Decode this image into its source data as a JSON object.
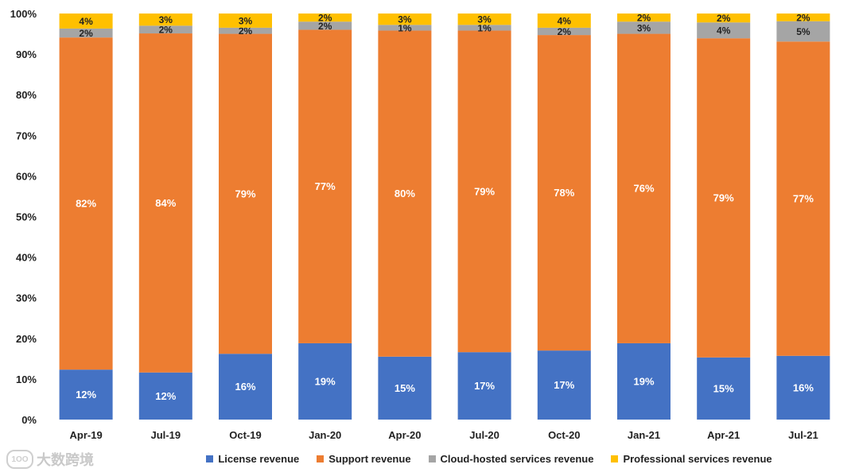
{
  "chart_data": {
    "type": "bar",
    "stacked": true,
    "categories": [
      "Apr-19",
      "Jul-19",
      "Oct-19",
      "Jan-20",
      "Apr-20",
      "Jul-20",
      "Oct-20",
      "Jan-21",
      "Apr-21",
      "Jul-21"
    ],
    "series": [
      {
        "name": "License revenue",
        "color": "#4472C4",
        "values": [
          12.3,
          11.6,
          16.2,
          18.8,
          15.5,
          16.6,
          17.0,
          18.8,
          15.3,
          15.7
        ],
        "labels": [
          "12%",
          "12%",
          "16%",
          "19%",
          "15%",
          "17%",
          "17%",
          "19%",
          "15%",
          "16%"
        ]
      },
      {
        "name": "Support revenue",
        "color": "#ED7D31",
        "values": [
          81.8,
          83.5,
          78.8,
          77.2,
          80.3,
          79.2,
          77.7,
          76.2,
          78.6,
          77.4
        ],
        "labels": [
          "82%",
          "84%",
          "79%",
          "77%",
          "80%",
          "79%",
          "78%",
          "76%",
          "79%",
          "77%"
        ]
      },
      {
        "name": "Cloud-hosted services revenue",
        "color": "#A5A5A5",
        "values": [
          2.2,
          1.9,
          1.5,
          2.0,
          1.4,
          1.4,
          1.8,
          3.0,
          3.9,
          5.0
        ],
        "labels": [
          "2%",
          "2%",
          "2%",
          "2%",
          "1%",
          "1%",
          "2%",
          "3%",
          "4%",
          "5%"
        ]
      },
      {
        "name": "Professional services revenue",
        "color": "#FFC000",
        "values": [
          3.7,
          3.0,
          3.5,
          2.0,
          2.8,
          2.8,
          3.5,
          2.0,
          2.2,
          1.9
        ],
        "labels": [
          "4%",
          "3%",
          "3%",
          "2%",
          "3%",
          "3%",
          "4%",
          "2%",
          "2%",
          "2%"
        ]
      }
    ],
    "ylim": [
      0,
      100
    ],
    "yticks": [
      "0%",
      "10%",
      "20%",
      "30%",
      "40%",
      "50%",
      "60%",
      "70%",
      "80%",
      "90%",
      "100%"
    ],
    "grid": false,
    "legend_position": "bottom"
  },
  "watermark": {
    "icon_text": "1OO",
    "text": "大数跨境"
  }
}
